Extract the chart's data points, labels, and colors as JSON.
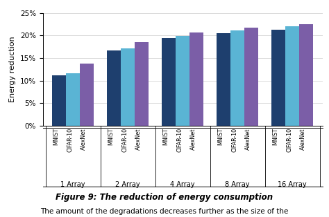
{
  "groups": [
    "1 Array",
    "2 Array",
    "4 Array",
    "8 Array",
    "16 Array"
  ],
  "labels": [
    "MNIST",
    "CIFAR-10",
    "AlexNet"
  ],
  "values": [
    [
      11.2,
      11.7,
      13.8
    ],
    [
      16.7,
      17.2,
      18.6
    ],
    [
      19.4,
      19.9,
      20.7
    ],
    [
      20.5,
      21.1,
      21.7
    ],
    [
      21.3,
      22.0,
      22.5
    ]
  ],
  "colors": [
    "#1e3f6e",
    "#5ab4d4",
    "#7b5ea7"
  ],
  "ylabel": "Energy reduction",
  "ylim": [
    0,
    25
  ],
  "yticks": [
    0,
    5,
    10,
    15,
    20,
    25
  ],
  "yticklabels": [
    "0%",
    "5%",
    "10%",
    "15%",
    "20%",
    "25%"
  ],
  "title": "Figure 9: The reduction of energy consumption",
  "subtitle": "The amount of the degradations decreases further as the size of the",
  "bar_width": 0.25,
  "bg_color": "#f5f5f5"
}
